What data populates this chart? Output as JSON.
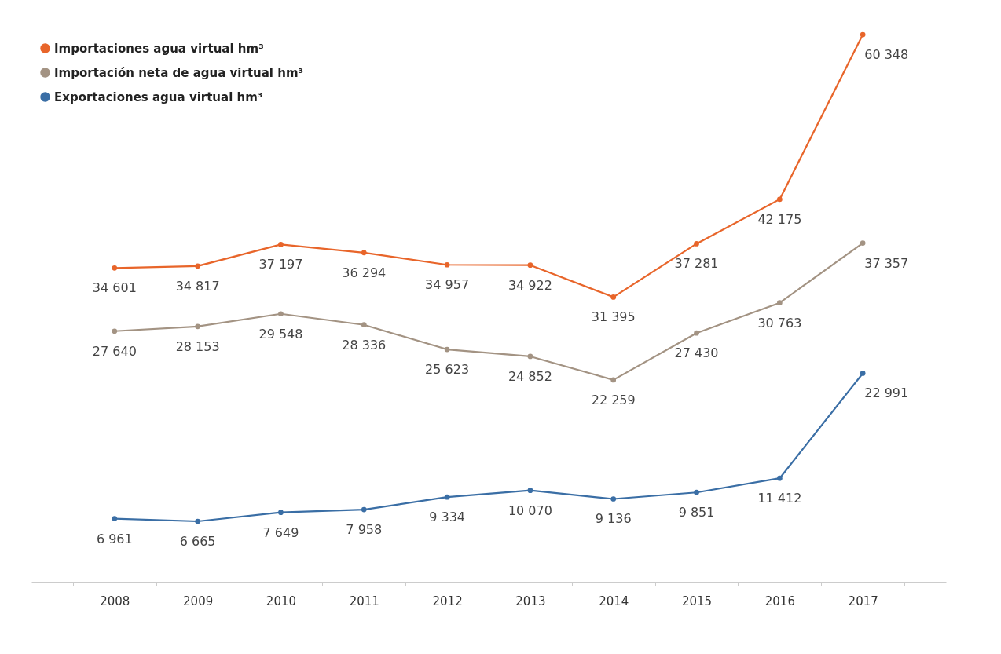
{
  "chart_data": {
    "type": "line",
    "categories": [
      "2008",
      "2009",
      "2010",
      "2011",
      "2012",
      "2013",
      "2014",
      "2015",
      "2016",
      "2017"
    ],
    "series": [
      {
        "name": "Importaciones agua virtual hm³",
        "color": "#e8652a",
        "values": [
          34601,
          34817,
          37197,
          36294,
          34957,
          34922,
          31395,
          37281,
          42175,
          60348
        ],
        "value_labels": [
          "34 601",
          "34 817",
          "37 197",
          "36 294",
          "34 957",
          "34 922",
          "31 395",
          "37 281",
          "42 175",
          "60 348"
        ]
      },
      {
        "name": "Importación neta de agua virtual hm³",
        "color": "#a39383",
        "values": [
          27640,
          28153,
          29548,
          28336,
          25623,
          24852,
          22259,
          27430,
          30763,
          37357
        ],
        "value_labels": [
          "27 640",
          "28 153",
          "29 548",
          "28 336",
          "25 623",
          "24 852",
          "22 259",
          "27 430",
          "30 763",
          "37 357"
        ]
      },
      {
        "name": "Exportaciones agua virtual hm³",
        "color": "#3a6ea5",
        "values": [
          6961,
          6665,
          7649,
          7958,
          9334,
          10070,
          9136,
          9851,
          11412,
          22991
        ],
        "value_labels": [
          "6 961",
          "6 665",
          "7 649",
          "7 958",
          "9 334",
          "10 070",
          "9 136",
          "9 851",
          "11 412",
          "22 991"
        ]
      }
    ],
    "legend": "top left",
    "marker": "circle",
    "line_style": "solid",
    "grid": false,
    "tick_labels": "x"
  }
}
